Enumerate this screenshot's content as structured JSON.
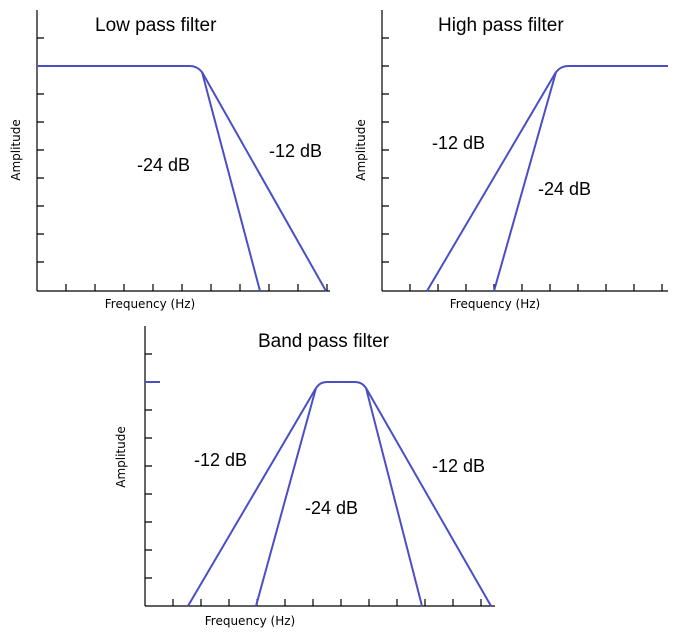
{
  "colors": {
    "curve": "#4a4fc4",
    "axis": "#000000",
    "background": "#ffffff"
  },
  "panels": {
    "low_pass": {
      "title": "Low pass filter",
      "ylabel": "Amplitude",
      "xlabel": "Frequency (Hz)",
      "slope_steep": "-24 dB",
      "slope_gentle": "-12 dB"
    },
    "high_pass": {
      "title": "High pass filter",
      "ylabel": "Amplitude",
      "xlabel": "Frequency (Hz)",
      "slope_gentle": "-12 dB",
      "slope_steep": "-24 dB"
    },
    "band_pass": {
      "title": "Band pass filter",
      "ylabel": "Amplitude",
      "xlabel": "Frequency (Hz)",
      "slope_left": "-12 dB",
      "slope_center": "-24 dB",
      "slope_right": "-12 dB"
    }
  }
}
